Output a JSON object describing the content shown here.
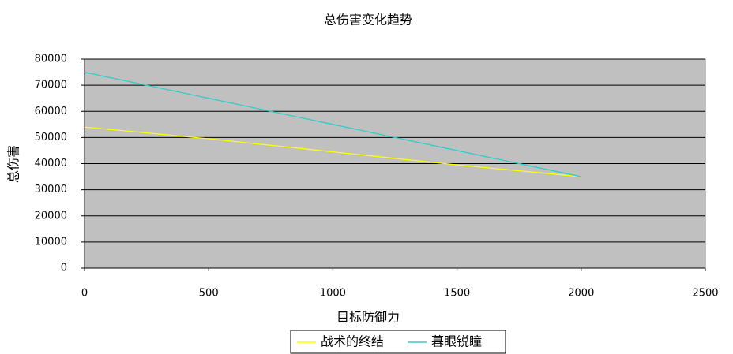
{
  "chart_data": {
    "type": "line",
    "title": "总伤害变化趋势",
    "x_label": "目标防御力",
    "y_label": "总伤害",
    "x": [
      0,
      500,
      1000,
      1500,
      2000
    ],
    "series": [
      {
        "name": "战术的终结",
        "color": "#ffff00",
        "values": [
          54000,
          49500,
          44500,
          39500,
          35000
        ]
      },
      {
        "name": "暮眼锐瞳",
        "color": "#33cccc",
        "values": [
          75000,
          65000,
          55000,
          45000,
          35000
        ]
      }
    ],
    "xlim": [
      0,
      2500
    ],
    "xticks": [
      0,
      500,
      1000,
      1500,
      2000,
      2500
    ],
    "ylim": [
      0,
      80000
    ],
    "yticks": [
      0,
      10000,
      20000,
      30000,
      40000,
      50000,
      60000,
      70000,
      80000
    ],
    "grid": true,
    "plot_background": "#c0c0c0",
    "legend": "bottom"
  }
}
